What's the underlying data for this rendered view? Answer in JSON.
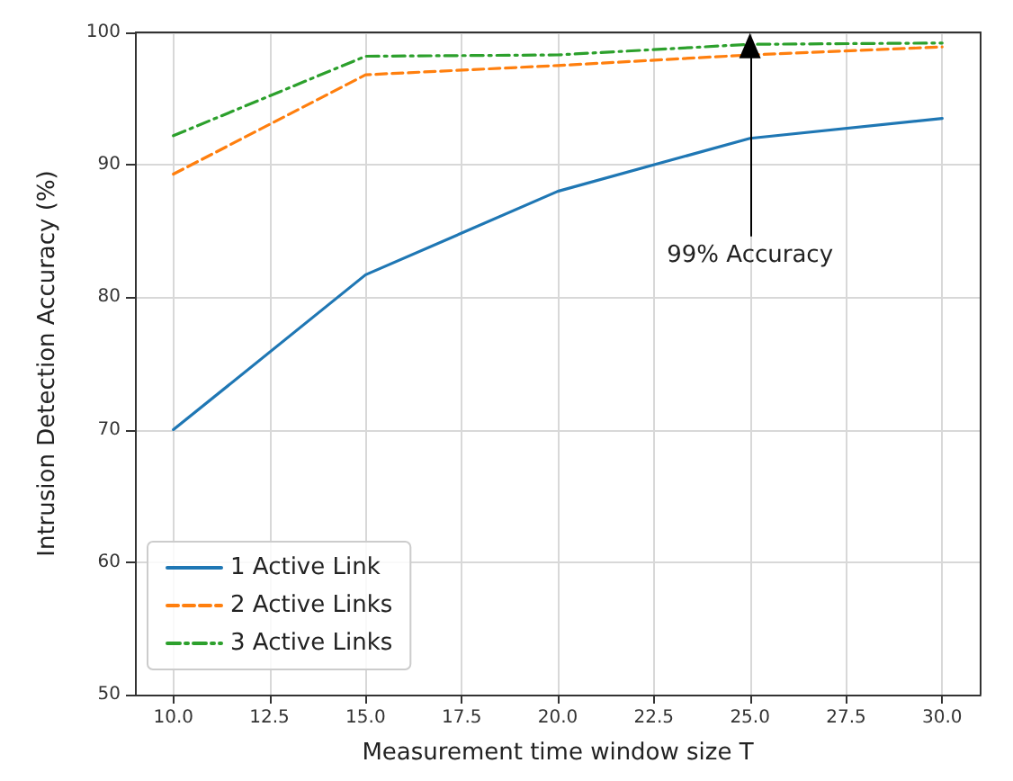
{
  "chart_data": {
    "type": "line",
    "xlabel": "Measurement time window size T",
    "ylabel": "Intrusion Detection Accuracy (%)",
    "x": [
      10,
      15,
      20,
      25,
      30
    ],
    "series": [
      {
        "name": "1 Active Link",
        "color": "#1f77b4",
        "line_style": "solid",
        "values": [
          70,
          81.7,
          88,
          92,
          93.5
        ]
      },
      {
        "name": "2 Active Links",
        "color": "#ff7f0e",
        "line_style": "dashed",
        "values": [
          89.3,
          96.8,
          97.5,
          98.3,
          98.9
        ]
      },
      {
        "name": "3 Active Links",
        "color": "#2ca02c",
        "line_style": "dashdot",
        "values": [
          92.2,
          98.2,
          98.3,
          99.1,
          99.2
        ]
      }
    ],
    "xlim": [
      9,
      31
    ],
    "ylim": [
      50,
      100
    ],
    "xticks": [
      {
        "value": 10,
        "label": "10.0"
      },
      {
        "value": 12.5,
        "label": "12.5"
      },
      {
        "value": 15,
        "label": "15.0"
      },
      {
        "value": 17.5,
        "label": "17.5"
      },
      {
        "value": 20,
        "label": "20.0"
      },
      {
        "value": 22.5,
        "label": "22.5"
      },
      {
        "value": 25,
        "label": "25.0"
      },
      {
        "value": 27.5,
        "label": "27.5"
      },
      {
        "value": 30,
        "label": "30.0"
      }
    ],
    "yticks": [
      50,
      60,
      70,
      80,
      90,
      100
    ],
    "annotations": [
      {
        "text": "99% Accuracy",
        "x": 25,
        "y": 99
      }
    ],
    "grid": true,
    "legend": "bottom left",
    "marker": "none"
  }
}
